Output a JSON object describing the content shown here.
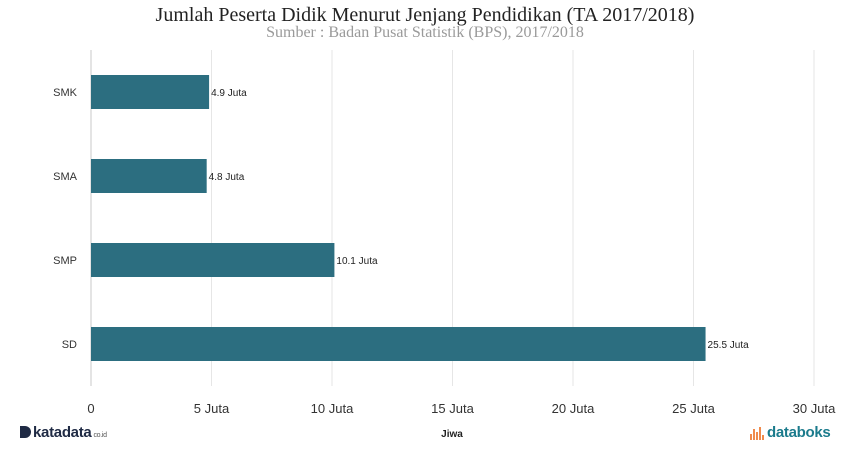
{
  "chart_data": {
    "type": "bar",
    "orientation": "horizontal",
    "title": "Jumlah Peserta Didik Menurut Jenjang Pendidikan (TA 2017/2018)",
    "subtitle": "Sumber : Badan Pusat Statistik (BPS), 2017/2018",
    "categories": [
      "SMK",
      "SMA",
      "SMP",
      "SD"
    ],
    "values": [
      4.9,
      4.8,
      10.1,
      25.5
    ],
    "data_labels": [
      "4.9 Juta",
      "4.8 Juta",
      "10.1 Juta",
      "25.5 Juta"
    ],
    "xlabel": "Jiwa",
    "ylabel": "",
    "xlim": [
      0,
      30
    ],
    "x_ticks": [
      0,
      5,
      10,
      15,
      20,
      25,
      30
    ],
    "x_tick_labels": [
      "0",
      "5 Juta",
      "10 Juta",
      "15 Juta",
      "20 Juta",
      "25 Juta",
      "30 Juta"
    ],
    "grid": true,
    "bar_color": "#2c6e80"
  },
  "branding": {
    "left_logo": "katadata",
    "left_logo_suffix": "co.id",
    "right_logo": "databoks",
    "right_logo_color": "#1b7b8c",
    "right_logo_accent": "#f08a4b"
  }
}
